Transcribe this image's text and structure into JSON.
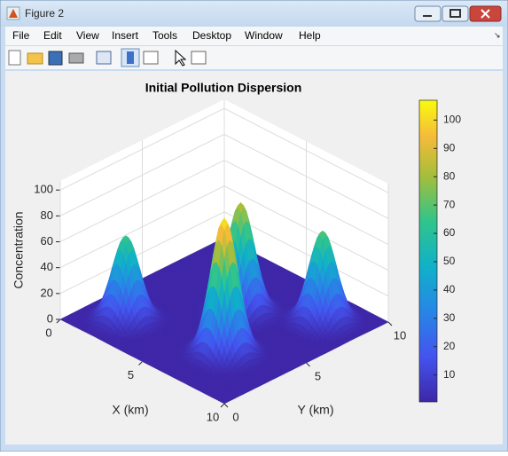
{
  "window": {
    "title": "Figure 2",
    "menu": [
      "File",
      "Edit",
      "View",
      "Insert",
      "Tools",
      "Desktop",
      "Window",
      "Help"
    ]
  },
  "chart_data": {
    "type": "surface",
    "title": "Initial Pollution Dispersion",
    "xlabel": "X (km)",
    "ylabel": "Y (km)",
    "zlabel": "Concentration",
    "xlim": [
      0,
      10
    ],
    "ylim": [
      0,
      10
    ],
    "zlim": [
      0,
      107
    ],
    "xticks": [
      0,
      5,
      10
    ],
    "yticks": [
      0,
      5,
      10
    ],
    "zticks": [
      0,
      20,
      40,
      60,
      80,
      100
    ],
    "peaks": [
      {
        "x": 2,
        "y": 2,
        "z": 65
      },
      {
        "x": 7,
        "y": 3,
        "z": 105
      },
      {
        "x": 5,
        "y": 6,
        "z": 85
      },
      {
        "x": 8,
        "y": 8,
        "z": 70
      }
    ],
    "colormap": "parula",
    "grid": true,
    "colorbar": {
      "lim": [
        0.5,
        107
      ],
      "ticks": [
        10,
        20,
        30,
        40,
        50,
        60,
        70,
        80,
        90,
        100
      ]
    }
  }
}
